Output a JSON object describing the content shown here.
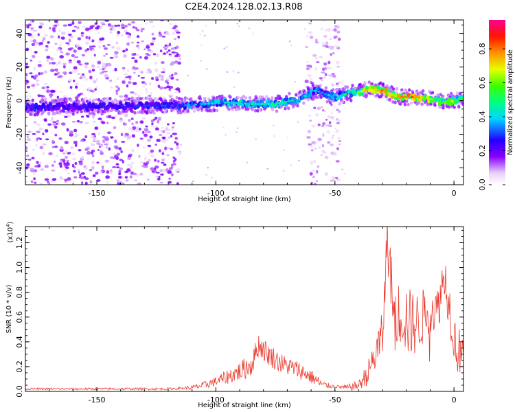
{
  "title": "C2E4.2024.128.02.13.R08",
  "colors": {
    "snr_line": "#ea3a2e",
    "axis": "#000000"
  },
  "chart_data": [
    {
      "type": "heatmap",
      "name": "spectrogram",
      "xlabel": "Height of straight line (km)",
      "ylabel": "Frequency (Hz)",
      "xlim": [
        -180,
        4
      ],
      "ylim": [
        -50,
        48
      ],
      "xticks": [
        -150,
        -100,
        -50,
        0
      ],
      "yticks": [
        -40,
        -20,
        0,
        20,
        40
      ],
      "colorbar": {
        "label": "Normalized spectral amplitude",
        "range": [
          0,
          0.97
        ],
        "ticks": [
          0.0,
          0.2,
          0.4,
          0.6,
          0.8
        ],
        "tick_labels": [
          "0.0",
          "0.2",
          "0.4",
          "0.6",
          "0.8"
        ],
        "colormap": "rainbow (white-violet-blue-cyan-green-yellow-red-magenta)"
      },
      "ridge": [
        {
          "x": -175,
          "y": -4,
          "a": 0.3
        },
        {
          "x": -165,
          "y": -3,
          "a": 0.28
        },
        {
          "x": -155,
          "y": -4,
          "a": 0.3
        },
        {
          "x": -145,
          "y": -3,
          "a": 0.28
        },
        {
          "x": -135,
          "y": -3,
          "a": 0.3
        },
        {
          "x": -125,
          "y": -3,
          "a": 0.32
        },
        {
          "x": -115,
          "y": -3,
          "a": 0.35
        },
        {
          "x": -105,
          "y": -2,
          "a": 0.42
        },
        {
          "x": -95,
          "y": -1,
          "a": 0.45
        },
        {
          "x": -85,
          "y": -2,
          "a": 0.48
        },
        {
          "x": -75,
          "y": -2,
          "a": 0.5
        },
        {
          "x": -65,
          "y": 1,
          "a": 0.48
        },
        {
          "x": -58,
          "y": 6,
          "a": 0.4
        },
        {
          "x": -50,
          "y": 2,
          "a": 0.4
        },
        {
          "x": -45,
          "y": 4,
          "a": 0.55
        },
        {
          "x": -40,
          "y": 5,
          "a": 0.62
        },
        {
          "x": -35,
          "y": 7,
          "a": 0.9
        },
        {
          "x": -30,
          "y": 6,
          "a": 0.8
        },
        {
          "x": -25,
          "y": 3,
          "a": 0.85
        },
        {
          "x": -20,
          "y": 2,
          "a": 0.88
        },
        {
          "x": -15,
          "y": 2,
          "a": 0.8
        },
        {
          "x": -10,
          "y": 1,
          "a": 0.72
        },
        {
          "x": -5,
          "y": -1,
          "a": 0.65
        },
        {
          "x": 0,
          "y": 0,
          "a": 0.7
        },
        {
          "x": 3,
          "y": 1,
          "a": 0.6
        }
      ],
      "scatter_regions": [
        {
          "x_range": [
            -180,
            -115
          ],
          "y_range": [
            -50,
            48
          ],
          "a": 0.15
        },
        {
          "x_range": [
            -62,
            -48
          ],
          "y_range": [
            -50,
            48
          ],
          "a": 0.1
        }
      ]
    },
    {
      "type": "line",
      "name": "snr",
      "xlabel": "Height of straight line (km)",
      "ylabel": "SNR (10 * v/v)",
      "multiplier_label": "(x10",
      "multiplier_exp": "4",
      "multiplier_close": ")",
      "xlim": [
        -180,
        4
      ],
      "ylim": [
        0,
        1.33
      ],
      "xticks": [
        -150,
        -100,
        -50,
        0
      ],
      "yticks": [
        0.0,
        0.2,
        0.4,
        0.6,
        0.8,
        1.0,
        1.2
      ],
      "ytick_labels": [
        "0.0",
        "0.2",
        "0.4",
        "0.6",
        "0.8",
        "1.0",
        "1.2"
      ],
      "envelope": [
        {
          "x": -180,
          "y": 0.02
        },
        {
          "x": -120,
          "y": 0.02
        },
        {
          "x": -110,
          "y": 0.03
        },
        {
          "x": -105,
          "y": 0.05
        },
        {
          "x": -100,
          "y": 0.08
        },
        {
          "x": -95,
          "y": 0.12
        },
        {
          "x": -90,
          "y": 0.16
        },
        {
          "x": -85,
          "y": 0.22
        },
        {
          "x": -82,
          "y": 0.38
        },
        {
          "x": -78,
          "y": 0.3
        },
        {
          "x": -72,
          "y": 0.22
        },
        {
          "x": -66,
          "y": 0.18
        },
        {
          "x": -60,
          "y": 0.12
        },
        {
          "x": -55,
          "y": 0.05
        },
        {
          "x": -45,
          "y": 0.03
        },
        {
          "x": -40,
          "y": 0.05
        },
        {
          "x": -36,
          "y": 0.15
        },
        {
          "x": -33,
          "y": 0.3
        },
        {
          "x": -30,
          "y": 0.45
        },
        {
          "x": -28,
          "y": 1.25
        },
        {
          "x": -25,
          "y": 0.6
        },
        {
          "x": -22,
          "y": 0.65
        },
        {
          "x": -19,
          "y": 0.55
        },
        {
          "x": -15,
          "y": 0.55
        },
        {
          "x": -10,
          "y": 0.68
        },
        {
          "x": -7,
          "y": 0.65
        },
        {
          "x": -4,
          "y": 0.95
        },
        {
          "x": -2,
          "y": 0.7
        },
        {
          "x": 0,
          "y": 0.45
        },
        {
          "x": 2,
          "y": 0.3
        },
        {
          "x": 4,
          "y": 0.45
        }
      ],
      "noise": [
        {
          "x": -180,
          "a": 0.008
        },
        {
          "x": -115,
          "a": 0.01
        },
        {
          "x": -100,
          "a": 0.04
        },
        {
          "x": -85,
          "a": 0.1
        },
        {
          "x": -75,
          "a": 0.09
        },
        {
          "x": -60,
          "a": 0.06
        },
        {
          "x": -50,
          "a": 0.01
        },
        {
          "x": -40,
          "a": 0.04
        },
        {
          "x": -30,
          "a": 0.2
        },
        {
          "x": -20,
          "a": 0.3
        },
        {
          "x": -10,
          "a": 0.2
        },
        {
          "x": 4,
          "a": 0.2
        }
      ]
    }
  ]
}
